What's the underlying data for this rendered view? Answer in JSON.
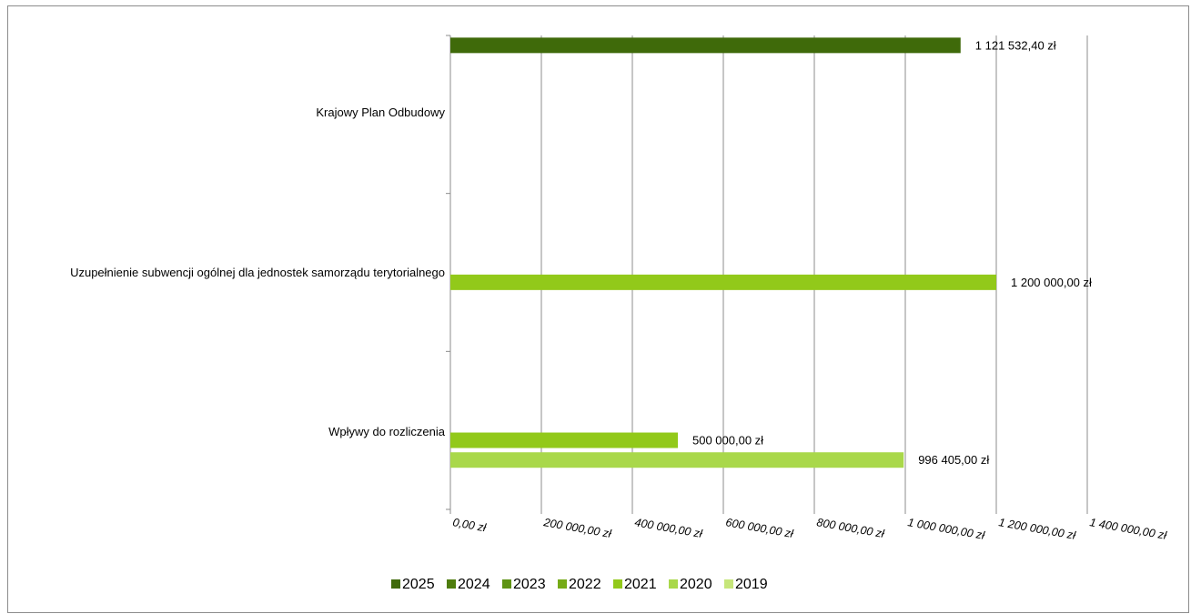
{
  "chart_data": {
    "type": "bar",
    "orientation": "horizontal",
    "title": "",
    "xlabel": "",
    "ylabel": "",
    "xlim": [
      0,
      1400000
    ],
    "grid": true,
    "legend_position": "bottom",
    "categories": [
      "Krajowy Plan Odbudowy",
      "Uzupełnienie subwencji ogólnej dla jednostek samorządu terytorialnego",
      "Wpływy do rozliczenia"
    ],
    "x_ticks": [
      0,
      200000,
      400000,
      600000,
      800000,
      1000000,
      1200000,
      1400000
    ],
    "x_tick_labels": [
      "0,00 zł",
      "200 000,00 zł",
      "400 000,00 zł",
      "600 000,00 zł",
      "800 000,00 zł",
      "1 000 000,00 zł",
      "1 200 000,00 zł",
      "1 400 000,00 zł"
    ],
    "series": [
      {
        "name": "2025",
        "color": "#3f6a0a",
        "values": [
          1121532.4,
          null,
          null
        ],
        "labels": [
          "1 121 532,40 zł",
          "",
          ""
        ]
      },
      {
        "name": "2024",
        "color": "#4e7d0d",
        "values": [
          null,
          null,
          null
        ],
        "labels": [
          "",
          "",
          ""
        ]
      },
      {
        "name": "2023",
        "color": "#5e9313",
        "values": [
          null,
          null,
          null
        ],
        "labels": [
          "",
          "",
          ""
        ]
      },
      {
        "name": "2022",
        "color": "#76ab17",
        "values": [
          null,
          null,
          null
        ],
        "labels": [
          "",
          "",
          ""
        ]
      },
      {
        "name": "2021",
        "color": "#92c91a",
        "values": [
          null,
          1200000,
          500000
        ],
        "labels": [
          "",
          "1 200 000,00 zł",
          "500 000,00 zł"
        ]
      },
      {
        "name": "2020",
        "color": "#a9d84a",
        "values": [
          null,
          null,
          996405
        ],
        "labels": [
          "",
          "",
          "996 405,00 zł"
        ]
      },
      {
        "name": "2019",
        "color": "#c6e67a",
        "values": [
          null,
          null,
          null
        ],
        "labels": [
          "",
          "",
          ""
        ]
      }
    ]
  }
}
